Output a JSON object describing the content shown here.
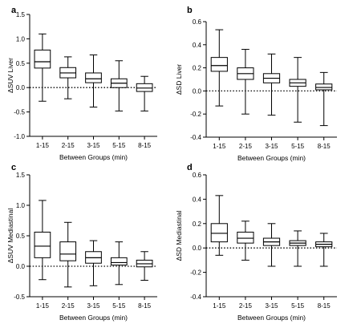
{
  "chart_data": [
    {
      "type": "box",
      "panel": "a",
      "xlabel": "Between Groups (min)",
      "ylabel": "ΔSUV Liver",
      "ylim": [
        -1.0,
        1.5
      ],
      "yticks": [
        -1.0,
        -0.5,
        0.0,
        0.5,
        1.0,
        1.5
      ],
      "ytick_labels": [
        "-1.0",
        "-0.5",
        "0.0",
        "0.5",
        "1.0",
        "1.5"
      ],
      "reference_line": 0,
      "categories": [
        "1-15",
        "2-15",
        "3-15",
        "5-15",
        "8-15"
      ],
      "boxes": [
        {
          "min": -0.28,
          "q1": 0.4,
          "median": 0.53,
          "q3": 0.77,
          "max": 1.1
        },
        {
          "min": -0.23,
          "q1": 0.2,
          "median": 0.3,
          "q3": 0.41,
          "max": 0.63
        },
        {
          "min": -0.4,
          "q1": 0.1,
          "median": 0.18,
          "q3": 0.3,
          "max": 0.67
        },
        {
          "min": -0.48,
          "q1": 0.0,
          "median": 0.09,
          "q3": 0.18,
          "max": 0.55
        },
        {
          "min": -0.48,
          "q1": -0.08,
          "median": -0.01,
          "q3": 0.08,
          "max": 0.23
        }
      ]
    },
    {
      "type": "box",
      "panel": "b",
      "xlabel": "Between Groups (min)",
      "ylabel": "ΔSD Liver",
      "ylim": [
        -0.4,
        0.6
      ],
      "yticks": [
        -0.4,
        -0.2,
        0.0,
        0.2,
        0.4,
        0.6
      ],
      "ytick_labels": [
        "-0.4",
        "-0.2",
        "0.0",
        "0.2",
        "0.4",
        "0.6"
      ],
      "reference_line": 0,
      "categories": [
        "1-15",
        "2-15",
        "3-15",
        "5-15",
        "8-15"
      ],
      "boxes": [
        {
          "min": -0.13,
          "q1": 0.17,
          "median": 0.22,
          "q3": 0.29,
          "max": 0.53
        },
        {
          "min": -0.2,
          "q1": 0.1,
          "median": 0.15,
          "q3": 0.2,
          "max": 0.36
        },
        {
          "min": -0.21,
          "q1": 0.07,
          "median": 0.11,
          "q3": 0.15,
          "max": 0.32
        },
        {
          "min": -0.27,
          "q1": 0.04,
          "median": 0.07,
          "q3": 0.1,
          "max": 0.29
        },
        {
          "min": -0.3,
          "q1": 0.01,
          "median": 0.03,
          "q3": 0.06,
          "max": 0.16
        }
      ]
    },
    {
      "type": "box",
      "panel": "c",
      "xlabel": "Between Groups (min)",
      "ylabel": "ΔSUV Mediastinal",
      "ylim": [
        -0.5,
        1.5
      ],
      "yticks": [
        -0.5,
        0.0,
        0.5,
        1.0,
        1.5
      ],
      "ytick_labels": [
        "-0.5",
        "0.0",
        "0.5",
        "1.0",
        "1.5"
      ],
      "reference_line": 0,
      "categories": [
        "1-15",
        "2-15",
        "3-15",
        "5-15",
        "8-15"
      ],
      "boxes": [
        {
          "min": -0.22,
          "q1": 0.14,
          "median": 0.33,
          "q3": 0.56,
          "max": 1.08
        },
        {
          "min": -0.34,
          "q1": 0.09,
          "median": 0.2,
          "q3": 0.4,
          "max": 0.72
        },
        {
          "min": -0.32,
          "q1": 0.05,
          "median": 0.14,
          "q3": 0.24,
          "max": 0.42
        },
        {
          "min": -0.3,
          "q1": 0.02,
          "median": 0.06,
          "q3": 0.14,
          "max": 0.4
        },
        {
          "min": -0.23,
          "q1": -0.01,
          "median": 0.04,
          "q3": 0.1,
          "max": 0.24
        }
      ]
    },
    {
      "type": "box",
      "panel": "d",
      "xlabel": "Between Groups (min)",
      "ylabel": "ΔSD Mediastinal",
      "ylim": [
        -0.4,
        0.6
      ],
      "yticks": [
        -0.4,
        -0.2,
        0.0,
        0.2,
        0.4,
        0.6
      ],
      "ytick_labels": [
        "-0.4",
        "-0.2",
        "0.0",
        "0.2",
        "0.4",
        "0.6"
      ],
      "reference_line": 0,
      "categories": [
        "1-15",
        "2-15",
        "3-15",
        "5-15",
        "8-15"
      ],
      "boxes": [
        {
          "min": -0.06,
          "q1": 0.05,
          "median": 0.12,
          "q3": 0.2,
          "max": 0.43
        },
        {
          "min": -0.1,
          "q1": 0.04,
          "median": 0.08,
          "q3": 0.13,
          "max": 0.22
        },
        {
          "min": -0.15,
          "q1": 0.02,
          "median": 0.05,
          "q3": 0.08,
          "max": 0.2
        },
        {
          "min": -0.15,
          "q1": 0.02,
          "median": 0.04,
          "q3": 0.06,
          "max": 0.14
        },
        {
          "min": -0.15,
          "q1": 0.01,
          "median": 0.03,
          "q3": 0.05,
          "max": 0.12
        }
      ]
    }
  ]
}
